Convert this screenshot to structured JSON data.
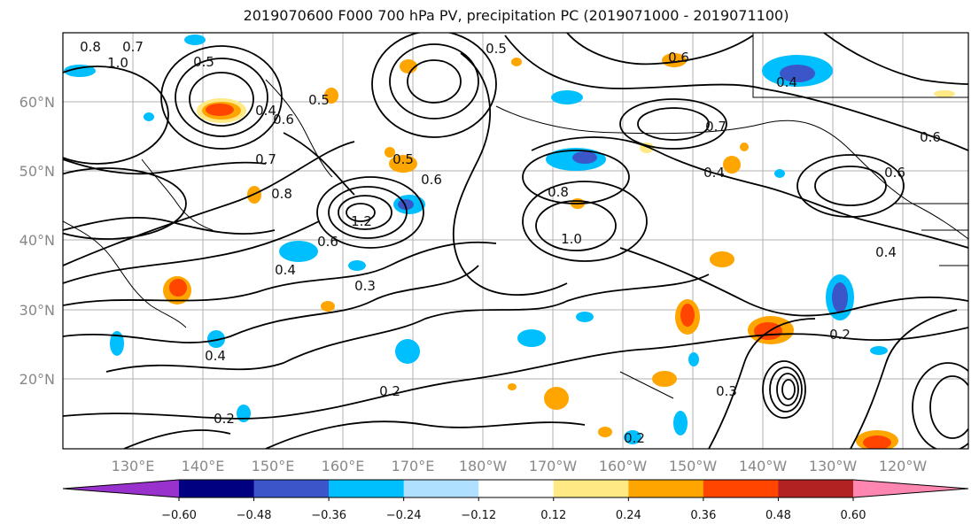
{
  "title": "2019070600 F000 700 hPa PV, precipitation PC (2019071000 - 2019071100)",
  "map": {
    "lat_labels": [
      "60°N",
      "50°N",
      "40°N",
      "30°N",
      "20°N"
    ],
    "lon_labels": [
      "130°E",
      "140°E",
      "150°E",
      "160°E",
      "170°E",
      "180°W",
      "170°W",
      "160°W",
      "150°W",
      "140°W",
      "130°W",
      "120°W"
    ],
    "contour_labels": [
      "0.8",
      "1.0",
      "0.7",
      "0.5",
      "0.4",
      "0.6",
      "0.5",
      "0.7",
      "0.8",
      "0.4",
      "1.2",
      "0.6",
      "0.3",
      "0.2",
      "0.4",
      "0.2",
      "0.5",
      "0.6",
      "0.8",
      "1.0",
      "0.6",
      "0.4",
      "0.7",
      "0.4",
      "0.6",
      "0.2",
      "0.2",
      "0.3",
      "0.4",
      "0.5",
      "0.6"
    ]
  },
  "colorbar": {
    "colors": [
      "#9932cc",
      "#000080",
      "#3a56c8",
      "#00bfff",
      "#b0e0ff",
      "#ffffff",
      "#ffe985",
      "#ffa500",
      "#ff4500",
      "#b22222",
      "#ff86b0"
    ],
    "tick_labels": [
      "−0.60",
      "−0.48",
      "−0.36",
      "−0.24",
      "−0.12",
      "0.12",
      "0.24",
      "0.36",
      "0.48",
      "0.60"
    ]
  }
}
